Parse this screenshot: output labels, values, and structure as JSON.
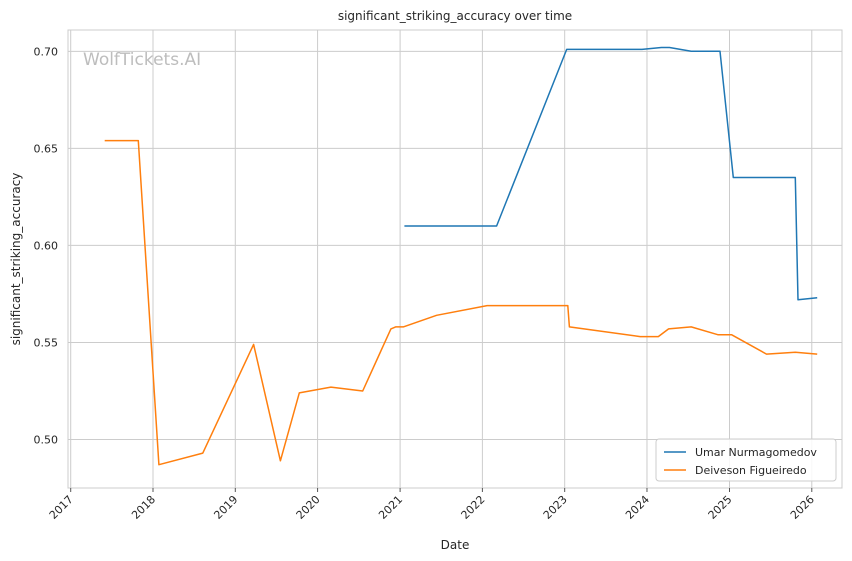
{
  "chart_data": {
    "type": "line",
    "title": "significant_striking_accuracy over time",
    "xlabel": "Date",
    "ylabel": "significant_striking_accuracy",
    "watermark": "WolfTickets.AI",
    "xlim": [
      "2016-12-20",
      "2026-05-15"
    ],
    "ylim": [
      0.475,
      0.711
    ],
    "x_ticks": [
      "2017",
      "2018",
      "2019",
      "2020",
      "2021",
      "2022",
      "2023",
      "2024",
      "2025",
      "2026"
    ],
    "y_ticks": [
      "0.50",
      "0.55",
      "0.60",
      "0.65",
      "0.70"
    ],
    "grid": true,
    "legend_position": "lower right",
    "series": [
      {
        "name": "Umar Nurmagomedov",
        "color": "#1f77b4",
        "points": [
          [
            "2021-01-20",
            0.61
          ],
          [
            "2022-03-05",
            0.61
          ],
          [
            "2023-01-10",
            0.701
          ],
          [
            "2023-12-10",
            0.701
          ],
          [
            "2024-03-05",
            0.702
          ],
          [
            "2024-04-10",
            0.702
          ],
          [
            "2024-07-15",
            0.7
          ],
          [
            "2024-11-20",
            0.7
          ],
          [
            "2025-01-18",
            0.635
          ],
          [
            "2025-10-20",
            0.635
          ],
          [
            "2025-11-01",
            0.572
          ],
          [
            "2026-01-25",
            0.573
          ]
        ]
      },
      {
        "name": "Deiveson Figueiredo",
        "color": "#ff7f0e",
        "points": [
          [
            "2017-06-01",
            0.654
          ],
          [
            "2017-10-28",
            0.654
          ],
          [
            "2018-01-27",
            0.487
          ],
          [
            "2018-08-10",
            0.493
          ],
          [
            "2019-03-23",
            0.549
          ],
          [
            "2019-07-20",
            0.489
          ],
          [
            "2019-10-12",
            0.524
          ],
          [
            "2020-02-29",
            0.527
          ],
          [
            "2020-07-19",
            0.525
          ],
          [
            "2020-11-21",
            0.557
          ],
          [
            "2020-12-12",
            0.558
          ],
          [
            "2021-01-15",
            0.558
          ],
          [
            "2021-06-12",
            0.564
          ],
          [
            "2022-01-22",
            0.569
          ],
          [
            "2023-01-15",
            0.569
          ],
          [
            "2023-01-22",
            0.558
          ],
          [
            "2023-12-02",
            0.553
          ],
          [
            "2024-02-20",
            0.553
          ],
          [
            "2024-04-06",
            0.557
          ],
          [
            "2024-07-15",
            0.558
          ],
          [
            "2024-11-10",
            0.554
          ],
          [
            "2025-01-10",
            0.554
          ],
          [
            "2025-06-14",
            0.544
          ],
          [
            "2025-10-20",
            0.545
          ],
          [
            "2026-01-25",
            0.544
          ]
        ]
      }
    ]
  }
}
